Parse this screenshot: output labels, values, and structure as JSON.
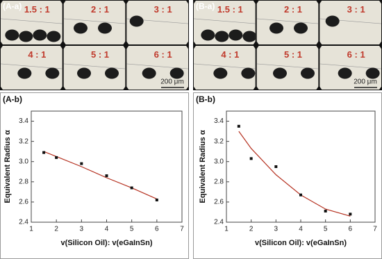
{
  "panels": [
    {
      "label": "(A-a)",
      "ratios": [
        "1.5 : 1",
        "2 : 1",
        "3 : 1",
        "4 : 1",
        "5 : 1",
        "6 : 1"
      ],
      "scale": "200 μm"
    },
    {
      "label": "(B-a)",
      "ratios": [
        "1.5 : 1",
        "2 : 1",
        "3 : 1",
        "4 : 1",
        "5 : 1",
        "6 : 1"
      ],
      "scale": "200 μm"
    }
  ],
  "chart_data": [
    {
      "type": "scatter",
      "panel": "(A-b)",
      "xlabel": "v(Silicon Oil): v(eGaInSn)",
      "ylabel": "Equivalent Radius α",
      "xlim": [
        1,
        7
      ],
      "xticks": [
        1,
        2,
        3,
        4,
        5,
        6,
        7
      ],
      "ylim": [
        2.4,
        3.5
      ],
      "yticks": [
        2.4,
        2.6,
        2.8,
        {
          "value": 3,
          "label": "3.0"
        },
        3.2,
        3.4
      ],
      "series": [
        {
          "color": "#111111",
          "x": [
            1.5,
            2,
            3,
            4,
            5,
            6
          ],
          "values": [
            3.09,
            3.04,
            2.98,
            2.86,
            2.74,
            2.62
          ]
        }
      ],
      "fit": {
        "color": "#b5301f",
        "x": [
          1.5,
          2,
          3,
          4,
          5,
          6
        ],
        "values": [
          3.1,
          3.05,
          2.95,
          2.84,
          2.74,
          2.63
        ]
      }
    },
    {
      "type": "scatter",
      "panel": "(B-b)",
      "xlabel": "v(Silicon Oil): v(eGaInSn)",
      "ylabel": "Equivalent Radius α",
      "xlim": [
        1,
        7
      ],
      "xticks": [
        1,
        2,
        3,
        4,
        5,
        6,
        7
      ],
      "ylim": [
        2.4,
        3.5
      ],
      "yticks": [
        2.4,
        2.6,
        2.8,
        {
          "value": 3,
          "label": "3.0"
        },
        3.2,
        3.4
      ],
      "series": [
        {
          "color": "#111111",
          "x": [
            1.5,
            2,
            3,
            4,
            5,
            6
          ],
          "values": [
            3.35,
            3.03,
            2.95,
            2.67,
            2.51,
            2.48
          ]
        }
      ],
      "fit": {
        "color": "#b5301f",
        "x": [
          1.5,
          2,
          3,
          4,
          5,
          6
        ],
        "values": [
          3.3,
          3.13,
          2.87,
          2.67,
          2.53,
          2.46
        ]
      }
    }
  ]
}
